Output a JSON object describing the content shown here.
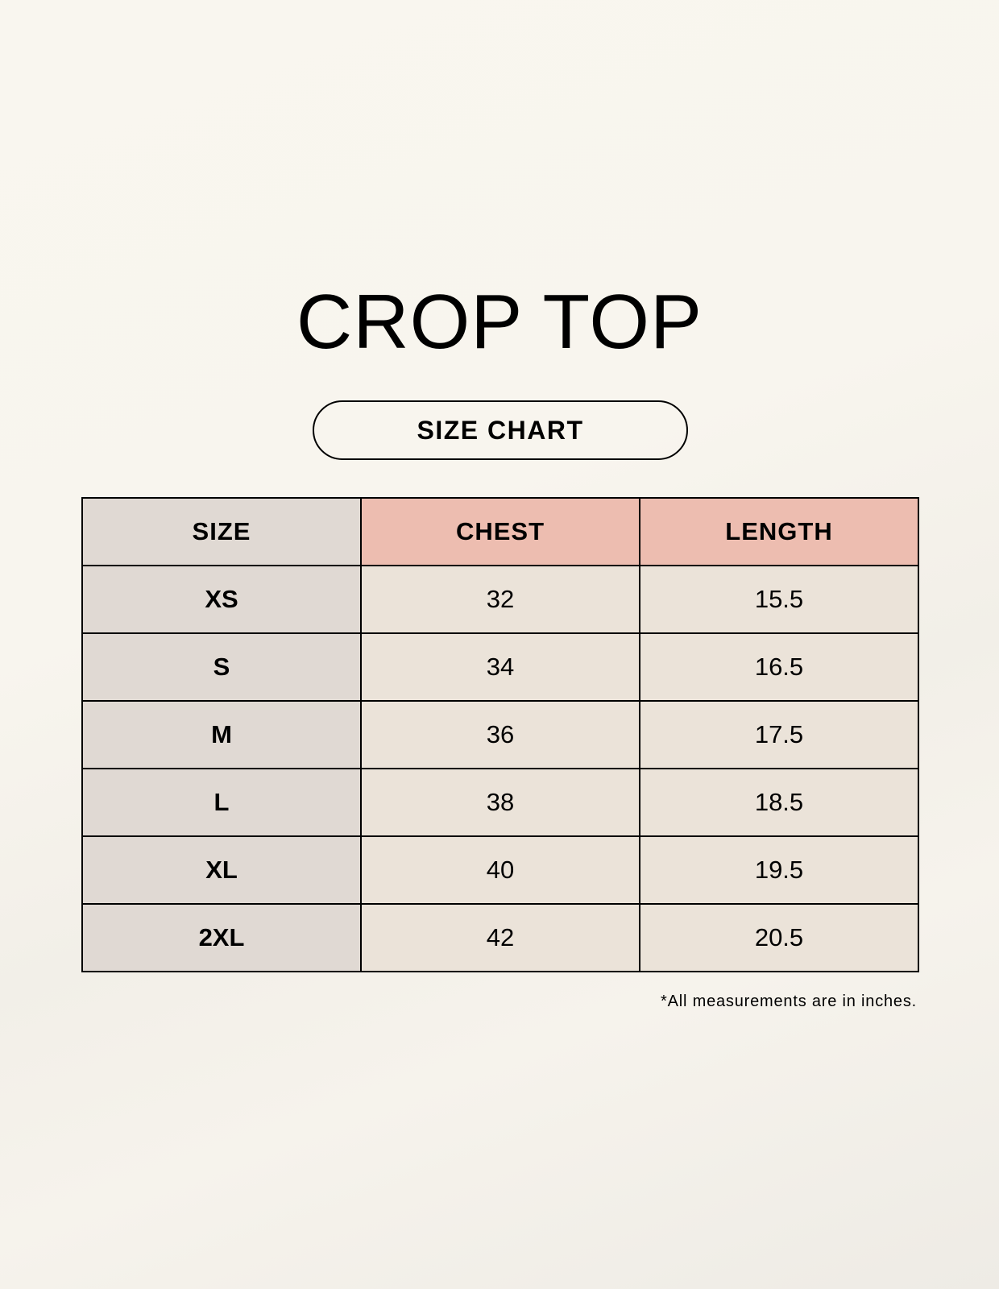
{
  "title": "CROP TOP",
  "subtitle": "SIZE CHART",
  "colors": {
    "size_column": "#e0d9d3",
    "header_accent": "#edbdb0",
    "value_cells": "#ebe3d9"
  },
  "table": {
    "headers": [
      "SIZE",
      "CHEST",
      "LENGTH"
    ],
    "rows": [
      [
        "XS",
        "32",
        "15.5"
      ],
      [
        "S",
        "34",
        "16.5"
      ],
      [
        "M",
        "36",
        "17.5"
      ],
      [
        "L",
        "38",
        "18.5"
      ],
      [
        "XL",
        "40",
        "19.5"
      ],
      [
        "2XL",
        "42",
        "20.5"
      ]
    ]
  },
  "footnote": "*All measurements are in inches."
}
